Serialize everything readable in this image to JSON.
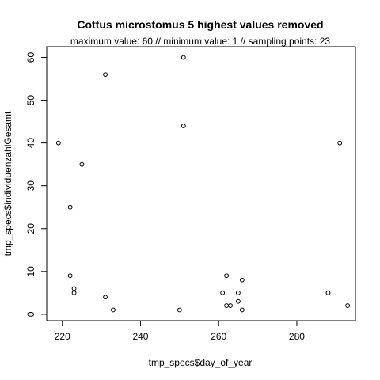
{
  "chart_data": {
    "type": "scatter",
    "title": "Cottus microstomus  5 highest values removed",
    "subtitle": "maximum value: 60  //  minimum value: 1  // sampling points: 23",
    "xlabel": "tmp_specs$day_of_year",
    "ylabel": "tmp_specs$individuenzahlGesamt",
    "xlim": [
      216,
      295
    ],
    "ylim": [
      -1.5,
      62.5
    ],
    "xticks": [
      220,
      240,
      260,
      280
    ],
    "yticks": [
      0,
      10,
      20,
      30,
      40,
      50,
      60
    ],
    "grid": false,
    "legend": "none",
    "points": [
      {
        "x": 219,
        "y": 40
      },
      {
        "x": 222,
        "y": 25
      },
      {
        "x": 222,
        "y": 9
      },
      {
        "x": 223,
        "y": 6
      },
      {
        "x": 223,
        "y": 5
      },
      {
        "x": 225,
        "y": 35
      },
      {
        "x": 231,
        "y": 56
      },
      {
        "x": 231,
        "y": 4
      },
      {
        "x": 233,
        "y": 1
      },
      {
        "x": 250,
        "y": 1
      },
      {
        "x": 251,
        "y": 60
      },
      {
        "x": 251,
        "y": 44
      },
      {
        "x": 261,
        "y": 5
      },
      {
        "x": 262,
        "y": 9
      },
      {
        "x": 262,
        "y": 2
      },
      {
        "x": 263,
        "y": 2
      },
      {
        "x": 265,
        "y": 5
      },
      {
        "x": 265,
        "y": 3
      },
      {
        "x": 266,
        "y": 8
      },
      {
        "x": 266,
        "y": 1
      },
      {
        "x": 288,
        "y": 5
      },
      {
        "x": 291,
        "y": 40
      },
      {
        "x": 293,
        "y": 2
      }
    ]
  }
}
